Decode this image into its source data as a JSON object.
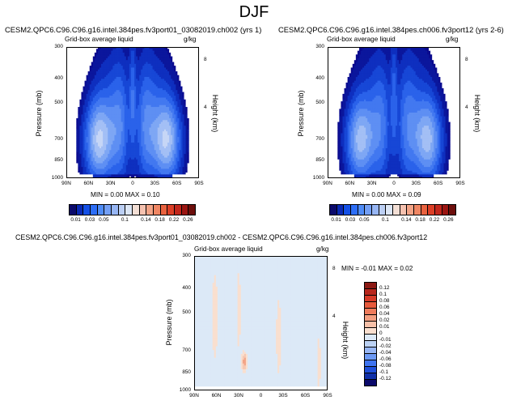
{
  "page_title": "DJF",
  "panels": [
    {
      "title": "CESM2.QPC6.C96.C96.g16.intel.384pes.fv3port01_03082019.ch002 (yrs 1)",
      "left_label": "Grid-box average liquid",
      "units": "g/kg",
      "ylabel": "Pressure (mb)",
      "right_label": "Height (km)",
      "stats": "MIN =  0.00   MAX =  0.10"
    },
    {
      "title": "CESM2.QPC6.C96.C96.g16.intel.384pes.ch006.fv3port12 (yrs 2-6)",
      "left_label": "Grid-box average liquid",
      "units": "g/kg",
      "ylabel": "Pressure (mb)",
      "right_label": "Height (km)",
      "stats": "MIN =  0.00   MAX =  0.09"
    },
    {
      "title": "CESM2.QPC6.C96.C96.g16.intel.384pes.fv3port01_03082019.ch002 - CESM2.QPC6.C96.C96.g16.intel.384pes.ch006.fv3port12",
      "left_label": "Grid-box average liquid",
      "units": "g/kg",
      "ylabel": "Pressure (mb)",
      "right_label": "Height (km)",
      "stats": "MIN = -0.01   MAX =  0.02"
    }
  ],
  "colorbars": {
    "abs": {
      "labels": [
        "0.01",
        "0.03",
        "0.05",
        "0.1",
        "0.14",
        "0.18",
        "0.22",
        "0.26"
      ],
      "colors": [
        "#0b0a6b",
        "#0a2ab5",
        "#1450e6",
        "#2d6ef7",
        "#4f8cf7",
        "#739ff5",
        "#97b6f4",
        "#bccff3",
        "#dce6f5",
        "#f3dfd5",
        "#f6c2b0",
        "#f3a487",
        "#ef8663",
        "#e9623f",
        "#dc3f27",
        "#c2271c",
        "#9b1612",
        "#6d0f0c"
      ]
    },
    "diff": {
      "labels": [
        "0.12",
        "0.1",
        "0.08",
        "0.06",
        "0.04",
        "0.02",
        "0.01",
        "0",
        "-0.01",
        "-0.02",
        "-0.04",
        "-0.06",
        "-0.08",
        "-0.1",
        "-0.12"
      ],
      "colors": [
        "#8c1a14",
        "#b8261c",
        "#d73a28",
        "#e75a3c",
        "#ef7c5c",
        "#f39e80",
        "#f6c0a8",
        "#f9dfcf",
        "#dce9f7",
        "#bcd2f4",
        "#97b6f4",
        "#6c99f4",
        "#3f74ef",
        "#1f4fd9",
        "#1030a8",
        "#0b0a6b"
      ]
    }
  },
  "chart_data": [
    {
      "type": "heatmap",
      "title": "CESM2.QPC6.C96.C96.g16.intel.384pes.fv3port01_03082019.ch002 (yrs 1)",
      "xlabel": "",
      "ylabel": "Pressure (mb)",
      "y2label": "Height (km)",
      "x_ticks": [
        "90N",
        "60N",
        "30N",
        "0",
        "30S",
        "60S",
        "90S"
      ],
      "y_ticks": [
        "300",
        "400",
        "500",
        "700",
        "850",
        "1000"
      ],
      "y2_ticks": [
        "8",
        "4"
      ],
      "xlim": [
        90,
        -90
      ],
      "ylim": [
        1000,
        300
      ],
      "y_scale": "log",
      "min": 0.0,
      "max": 0.1,
      "peaks": [
        {
          "lat": 48,
          "p": 850,
          "value": 0.1
        },
        {
          "lat": -48,
          "p": 850,
          "value": 0.1
        },
        {
          "lat": 10,
          "p": 800,
          "value": 0.06
        },
        {
          "lat": -10,
          "p": 800,
          "value": 0.06
        },
        {
          "lat": 0,
          "p": 450,
          "value": 0.03
        }
      ]
    },
    {
      "type": "heatmap",
      "title": "CESM2.QPC6.C96.C96.g16.intel.384pes.ch006.fv3port12 (yrs 2-6)",
      "xlabel": "",
      "ylabel": "Pressure (mb)",
      "y2label": "Height (km)",
      "x_ticks": [
        "90N",
        "60N",
        "30N",
        "0",
        "30S",
        "60S",
        "90S"
      ],
      "y_ticks": [
        "300",
        "400",
        "500",
        "700",
        "850",
        "1000"
      ],
      "y2_ticks": [
        "8",
        "4"
      ],
      "xlim": [
        90,
        -90
      ],
      "ylim": [
        1000,
        300
      ],
      "y_scale": "log",
      "min": 0.0,
      "max": 0.09,
      "peaks": [
        {
          "lat": 48,
          "p": 850,
          "value": 0.09
        },
        {
          "lat": -48,
          "p": 850,
          "value": 0.09
        },
        {
          "lat": 10,
          "p": 800,
          "value": 0.06
        },
        {
          "lat": -10,
          "p": 800,
          "value": 0.06
        },
        {
          "lat": 0,
          "p": 450,
          "value": 0.03
        }
      ]
    },
    {
      "type": "heatmap",
      "title": "CESM2.QPC6.C96.C96.g16.intel.384pes.fv3port01_03082019.ch002 - CESM2.QPC6.C96.C96.g16.intel.384pes.ch006.fv3port12",
      "xlabel": "",
      "ylabel": "Pressure (mb)",
      "y2label": "Height (km)",
      "x_ticks": [
        "90N",
        "60N",
        "30N",
        "0",
        "30S",
        "60S",
        "90S"
      ],
      "y_ticks": [
        "300",
        "400",
        "500",
        "700",
        "850",
        "1000"
      ],
      "y2_ticks": [
        "8",
        "4"
      ],
      "xlim": [
        90,
        -90
      ],
      "ylim": [
        1000,
        300
      ],
      "y_scale": "log",
      "min": -0.01,
      "max": 0.02
    }
  ]
}
